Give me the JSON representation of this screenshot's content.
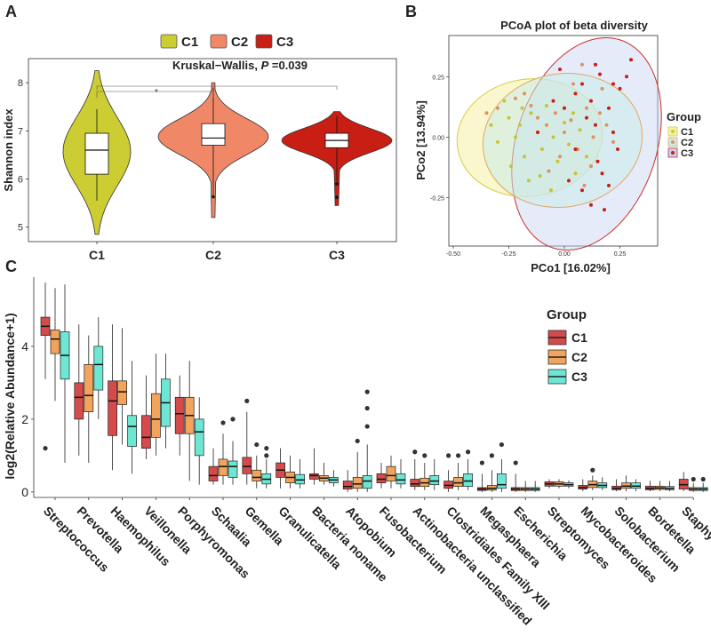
{
  "panel_labels": {
    "a": "A",
    "b": "B",
    "c": "C"
  },
  "colors": {
    "c1": "#cccc33",
    "c2": "#f08868",
    "c3": "#c81e14",
    "c3_box": "#6ee6d4",
    "c1_box": "#d54a4a",
    "c2_box": "#f2a45c"
  },
  "chart_data": [
    {
      "id": "A",
      "type": "violin",
      "legend": [
        "C1",
        "C2",
        "C3"
      ],
      "annotation": {
        "text": "Kruskal−Wallis, ",
        "p_label": "P",
        "p_value": " =0.039"
      },
      "significance": "*",
      "ylabel": "Shannon index",
      "ylim": [
        4.7,
        8.5
      ],
      "yticks": [
        "5",
        "6",
        "7",
        "8"
      ],
      "categories": [
        "C1",
        "C2",
        "C3"
      ],
      "groups": [
        {
          "name": "C1",
          "min": 4.85,
          "q1": 6.1,
          "median": 6.6,
          "q3": 6.95,
          "max": 8.25,
          "wlo": 5.55,
          "whi": 7.45,
          "outliers": []
        },
        {
          "name": "C2",
          "min": 5.2,
          "q1": 6.7,
          "median": 6.85,
          "q3": 7.15,
          "max": 8.0,
          "wlo": 5.6,
          "whi": 7.9,
          "outliers": [
            5.63
          ]
        },
        {
          "name": "C3",
          "min": 5.45,
          "q1": 6.65,
          "median": 6.8,
          "q3": 6.95,
          "max": 7.4,
          "wlo": 5.95,
          "whi": 7.3,
          "outliers": [
            5.9,
            5.62
          ]
        }
      ]
    },
    {
      "id": "B",
      "type": "scatter",
      "title": "PCoA plot of beta diversity",
      "xlabel": "PCo1 [16.02%]",
      "ylabel": "PCo2 [13.94%]",
      "xlim": [
        -0.52,
        0.42
      ],
      "ylim": [
        -0.45,
        0.42
      ],
      "xticks": [
        "-0.50",
        "-0.25",
        "0.00",
        "0.25"
      ],
      "yticks": [
        "0.25",
        "0.00",
        "-0.25"
      ],
      "legend_title": "Group",
      "legend": [
        "C1",
        "C2",
        "C3"
      ],
      "series": [
        {
          "name": "C1",
          "points": [
            [
              -0.33,
              0.05
            ],
            [
              -0.27,
              0.15
            ],
            [
              -0.25,
              0.08
            ],
            [
              -0.22,
              0.0
            ],
            [
              -0.2,
              0.05
            ],
            [
              -0.18,
              -0.08
            ],
            [
              -0.15,
              0.1
            ],
            [
              -0.12,
              0.02
            ],
            [
              -0.1,
              -0.05
            ],
            [
              -0.08,
              0.13
            ],
            [
              -0.05,
              0.0
            ],
            [
              -0.03,
              -0.1
            ],
            [
              0.0,
              0.06
            ],
            [
              0.02,
              -0.03
            ],
            [
              0.05,
              -0.15
            ],
            [
              0.07,
              0.03
            ],
            [
              -0.3,
              -0.02
            ],
            [
              -0.16,
              -0.18
            ],
            [
              -0.06,
              -0.22
            ],
            [
              0.1,
              -0.08
            ],
            [
              -0.24,
              -0.12
            ],
            [
              0.04,
              0.1
            ],
            [
              -0.11,
              -0.16
            ],
            [
              -0.19,
              0.12
            ]
          ]
        },
        {
          "name": "C2",
          "points": [
            [
              -0.35,
              0.1
            ],
            [
              -0.3,
              0.12
            ],
            [
              -0.22,
              0.16
            ],
            [
              -0.15,
              0.13
            ],
            [
              -0.12,
              0.08
            ],
            [
              -0.08,
              0.05
            ],
            [
              -0.04,
              0.1
            ],
            [
              0.0,
              0.02
            ],
            [
              0.03,
              0.07
            ],
            [
              0.06,
              -0.05
            ],
            [
              0.1,
              0.12
            ],
            [
              0.13,
              0.0
            ],
            [
              0.16,
              0.1
            ],
            [
              0.19,
              0.05
            ],
            [
              0.22,
              -0.02
            ],
            [
              0.04,
              0.22
            ],
            [
              0.08,
              0.3
            ],
            [
              -0.02,
              -0.08
            ],
            [
              -0.07,
              -0.14
            ],
            [
              0.12,
              -0.12
            ],
            [
              0.17,
              0.2
            ],
            [
              -0.18,
              0.18
            ],
            [
              0.09,
              -0.2
            ]
          ]
        },
        {
          "name": "C3",
          "points": [
            [
              -0.12,
              0.02
            ],
            [
              -0.05,
              0.15
            ],
            [
              0.0,
              0.12
            ],
            [
              0.05,
              0.18
            ],
            [
              0.08,
              0.22
            ],
            [
              0.1,
              0.08
            ],
            [
              0.12,
              0.15
            ],
            [
              0.14,
              0.05
            ],
            [
              0.15,
              -0.1
            ],
            [
              0.17,
              -0.15
            ],
            [
              0.2,
              0.12
            ],
            [
              0.22,
              0.02
            ],
            [
              0.25,
              0.2
            ],
            [
              0.28,
              0.25
            ],
            [
              0.3,
              0.32
            ],
            [
              0.12,
              -0.28
            ],
            [
              0.18,
              -0.3
            ],
            [
              0.2,
              -0.2
            ],
            [
              0.08,
              -0.22
            ],
            [
              0.02,
              -0.18
            ],
            [
              0.16,
              0.26
            ],
            [
              0.24,
              -0.05
            ],
            [
              0.14,
              0.3
            ],
            [
              -0.02,
              0.28
            ],
            [
              0.22,
              0.22
            ],
            [
              0.05,
              -0.05
            ]
          ]
        }
      ]
    },
    {
      "id": "C",
      "type": "boxplot",
      "ylabel": "log2(Relative Abundance+1)",
      "ylim": [
        -0.15,
        5.9
      ],
      "yticks": [
        "0",
        "2",
        "4"
      ],
      "legend_title": "Group",
      "legend": [
        "C1",
        "C2",
        "C3"
      ],
      "categories": [
        "Streptococcus",
        "Prevotella",
        "Haemophilus",
        "Veillonella",
        "Porphyromonas",
        "Schaalia",
        "Gemella",
        "Granulicatella",
        "Bacteria noname",
        "Atopobium",
        "Fusobacterium",
        "Actinobacteria unclassified",
        "Clostridiales Family XIII",
        "Megasphaera",
        "Escherichia",
        "Streptomyces",
        "Mycobacteroides",
        "Solobacterium",
        "Bordetella",
        "Staphylococcus"
      ],
      "series": [
        {
          "name": "C1",
          "boxes": [
            [
              3.1,
              4.3,
              4.55,
              4.8,
              5.75,
              [
                1.2
              ]
            ],
            [
              1.0,
              2.0,
              2.6,
              3.0,
              4.6,
              []
            ],
            [
              0.6,
              1.55,
              2.5,
              3.05,
              4.6,
              []
            ],
            [
              0.9,
              1.2,
              1.5,
              2.1,
              3.2,
              []
            ],
            [
              1.0,
              1.6,
              2.15,
              2.6,
              3.2,
              []
            ],
            [
              0.2,
              0.3,
              0.45,
              0.7,
              1.2,
              []
            ],
            [
              0.2,
              0.5,
              0.7,
              0.95,
              2.2,
              [
                2.5
              ]
            ],
            [
              0.1,
              0.4,
              0.6,
              0.8,
              1.2,
              []
            ],
            [
              0.2,
              0.35,
              0.45,
              0.5,
              1.2,
              []
            ],
            [
              0.0,
              0.08,
              0.15,
              0.3,
              0.6,
              []
            ],
            [
              0.1,
              0.25,
              0.35,
              0.5,
              0.8,
              []
            ],
            [
              0.05,
              0.15,
              0.22,
              0.35,
              0.9,
              [
                1.1
              ]
            ],
            [
              0.0,
              0.1,
              0.18,
              0.3,
              0.6,
              [
                1.0
              ]
            ],
            [
              0.0,
              0.04,
              0.08,
              0.12,
              0.5,
              [
                0.8
              ]
            ],
            [
              0.0,
              0.04,
              0.08,
              0.12,
              0.5,
              [
                0.8
              ]
            ],
            [
              0.1,
              0.16,
              0.22,
              0.28,
              0.35,
              []
            ],
            [
              0.02,
              0.08,
              0.12,
              0.18,
              0.35,
              []
            ],
            [
              0.02,
              0.06,
              0.1,
              0.16,
              0.35,
              []
            ],
            [
              0.02,
              0.06,
              0.1,
              0.16,
              0.3,
              []
            ],
            [
              0.02,
              0.08,
              0.2,
              0.35,
              0.55,
              []
            ]
          ]
        },
        {
          "name": "C2",
          "boxes": [
            [
              2.5,
              3.8,
              4.2,
              4.45,
              5.6,
              []
            ],
            [
              0.8,
              2.2,
              2.65,
              3.5,
              4.3,
              []
            ],
            [
              1.3,
              2.4,
              2.75,
              3.05,
              4.5,
              []
            ],
            [
              1.0,
              1.5,
              2.0,
              2.7,
              3.8,
              []
            ],
            [
              0.3,
              1.6,
              2.1,
              2.6,
              3.6,
              []
            ],
            [
              0.2,
              0.45,
              0.7,
              0.9,
              1.6,
              [
                1.9
              ]
            ],
            [
              0.1,
              0.3,
              0.4,
              0.6,
              1.0,
              [
                1.3
              ]
            ],
            [
              0.1,
              0.25,
              0.4,
              0.55,
              1.0,
              []
            ],
            [
              0.2,
              0.3,
              0.38,
              0.45,
              0.8,
              []
            ],
            [
              0.0,
              0.1,
              0.22,
              0.4,
              1.1,
              [
                1.4
              ]
            ],
            [
              0.1,
              0.3,
              0.45,
              0.7,
              1.0,
              []
            ],
            [
              0.05,
              0.15,
              0.25,
              0.38,
              0.8,
              [
                1.0
              ]
            ],
            [
              0.05,
              0.15,
              0.25,
              0.4,
              0.8,
              [
                1.0
              ]
            ],
            [
              0.0,
              0.05,
              0.1,
              0.18,
              0.6,
              [
                1.0
              ]
            ],
            [
              0.0,
              0.04,
              0.08,
              0.12,
              0.3,
              []
            ],
            [
              0.1,
              0.16,
              0.22,
              0.28,
              0.35,
              []
            ],
            [
              0.05,
              0.12,
              0.2,
              0.3,
              0.45,
              [
                0.6
              ]
            ],
            [
              0.02,
              0.1,
              0.16,
              0.25,
              0.45,
              []
            ],
            [
              0.02,
              0.07,
              0.11,
              0.16,
              0.3,
              []
            ],
            [
              0.0,
              0.04,
              0.08,
              0.12,
              0.25,
              [
                0.35
              ]
            ]
          ]
        },
        {
          "name": "C3",
          "boxes": [
            [
              0.8,
              3.1,
              3.75,
              4.4,
              5.7,
              []
            ],
            [
              2.0,
              2.8,
              3.5,
              4.0,
              4.8,
              []
            ],
            [
              0.5,
              1.25,
              1.8,
              2.1,
              3.6,
              []
            ],
            [
              1.2,
              1.8,
              2.45,
              3.1,
              3.8,
              []
            ],
            [
              0.2,
              1.0,
              1.65,
              2.0,
              2.6,
              []
            ],
            [
              0.2,
              0.4,
              0.7,
              0.85,
              1.4,
              [
                2.0
              ]
            ],
            [
              0.1,
              0.22,
              0.35,
              0.5,
              0.9,
              [
                1.2,
                1.0
              ]
            ],
            [
              0.1,
              0.22,
              0.33,
              0.48,
              0.9,
              []
            ],
            [
              0.15,
              0.25,
              0.33,
              0.4,
              0.6,
              []
            ],
            [
              0.0,
              0.1,
              0.3,
              0.45,
              1.3,
              [
                2.75,
                2.3,
                1.8
              ]
            ],
            [
              0.1,
              0.22,
              0.33,
              0.5,
              0.9,
              []
            ],
            [
              0.05,
              0.2,
              0.3,
              0.45,
              0.9,
              []
            ],
            [
              0.05,
              0.15,
              0.3,
              0.5,
              0.9,
              [
                1.1
              ]
            ],
            [
              0.0,
              0.1,
              0.2,
              0.5,
              0.9,
              [
                1.3
              ]
            ],
            [
              0.0,
              0.04,
              0.08,
              0.12,
              0.3,
              []
            ],
            [
              0.1,
              0.16,
              0.2,
              0.25,
              0.32,
              []
            ],
            [
              0.05,
              0.12,
              0.18,
              0.25,
              0.4,
              []
            ],
            [
              0.02,
              0.1,
              0.16,
              0.25,
              0.35,
              []
            ],
            [
              0.02,
              0.06,
              0.1,
              0.15,
              0.3,
              []
            ],
            [
              0.0,
              0.04,
              0.08,
              0.12,
              0.25,
              [
                0.35
              ]
            ]
          ]
        }
      ]
    }
  ]
}
